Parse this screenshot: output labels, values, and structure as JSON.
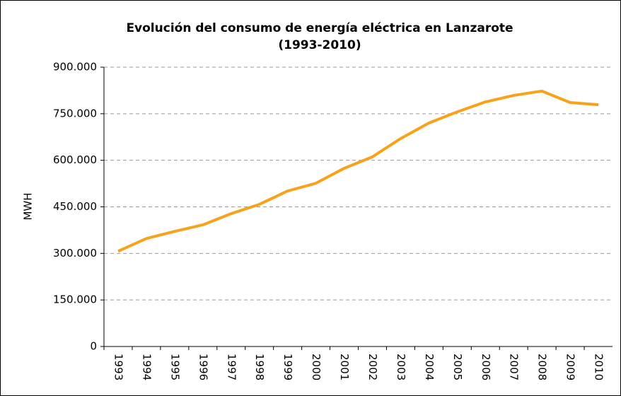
{
  "chart_data": {
    "type": "line",
    "title": [
      "Evolución del consumo de energía eléctrica en Lanzarote",
      "(1993-2010)"
    ],
    "y_label": "MWH",
    "categories": [
      "1993",
      "1994",
      "1995",
      "1996",
      "1997",
      "1998",
      "1999",
      "2000",
      "2001",
      "2002",
      "2003",
      "2004",
      "2005",
      "2006",
      "2007",
      "2008",
      "2009",
      "2010"
    ],
    "series": [
      {
        "name": "MWH",
        "color": "#f7a21b",
        "values": [
          307000,
          348000,
          371000,
          392000,
          428000,
          458000,
          501000,
          526000,
          574000,
          611000,
          670000,
          720000,
          756000,
          788000,
          809000,
          823000,
          786000,
          779000
        ]
      }
    ],
    "ylim": [
      0,
      900000
    ],
    "yticks": [
      0,
      {
        "value": 150000,
        "label": "150.000"
      },
      {
        "value": 300000,
        "label": "300.000"
      },
      {
        "value": 450000,
        "label": "450.000"
      },
      {
        "value": 600000,
        "label": "600.000"
      },
      {
        "value": 750000,
        "label": "750.000"
      },
      {
        "value": 900000,
        "label": "900.000"
      }
    ],
    "grid": true
  }
}
